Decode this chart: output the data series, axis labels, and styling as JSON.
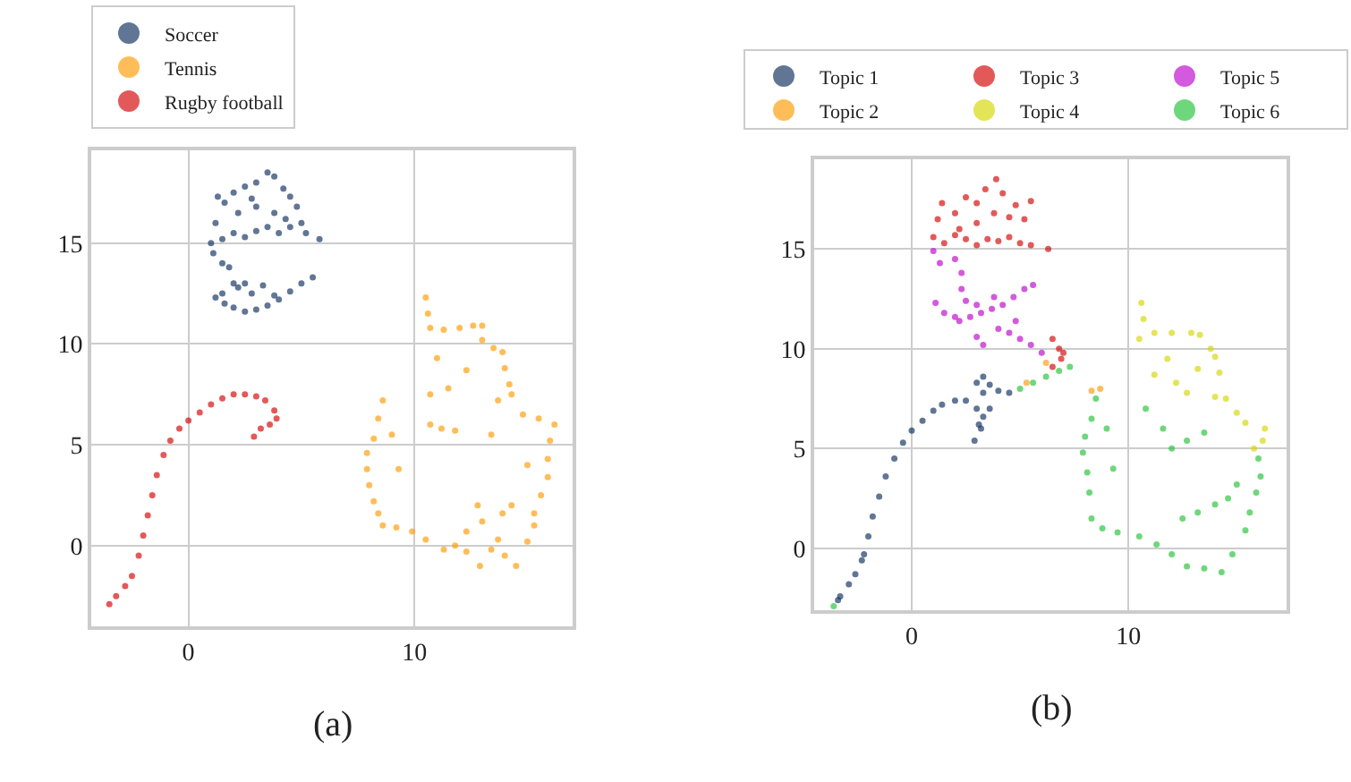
{
  "chart_data": [
    {
      "type": "scatter",
      "annotations": [
        "(a)"
      ],
      "xlim": [
        -4.3,
        17.0
      ],
      "ylim": [
        -4.0,
        19.6
      ],
      "xticks": [
        0,
        10
      ],
      "yticks": [
        0,
        5,
        10,
        15
      ],
      "grid": true,
      "legend": "top left",
      "marker": "circle",
      "series": [
        {
          "name": "Soccer",
          "color": "#0d2c5c",
          "x": [
            1.0,
            1.2,
            1.3,
            1.6,
            2.0,
            2.5,
            3.0,
            3.5,
            3.8,
            4.2,
            4.5,
            4.8,
            5.0,
            5.2,
            5.8,
            1.5,
            2.0,
            2.5,
            3.0,
            3.5,
            4.0,
            4.5,
            2.2,
            3.0,
            3.8,
            4.3,
            2.8,
            1.1,
            1.5,
            1.8,
            2.0,
            1.5,
            1.2,
            1.6,
            2.0,
            2.5,
            3.0,
            3.5,
            4.0,
            4.5,
            5.0,
            5.5,
            2.2,
            2.8,
            3.3,
            3.8,
            2.5
          ],
          "values": [
            15.0,
            16.0,
            17.3,
            17.0,
            17.5,
            17.8,
            18.0,
            18.5,
            18.3,
            17.7,
            17.3,
            16.8,
            16.0,
            15.5,
            15.2,
            15.2,
            15.5,
            15.3,
            15.6,
            15.8,
            15.5,
            15.8,
            16.5,
            16.8,
            16.5,
            16.2,
            17.2,
            14.5,
            14.0,
            13.8,
            13.0,
            12.5,
            12.3,
            12.0,
            11.8,
            11.6,
            11.7,
            11.9,
            12.2,
            12.6,
            13.0,
            13.3,
            12.8,
            12.5,
            12.9,
            12.4,
            13.0
          ]
        },
        {
          "name": "Tennis",
          "color": "#ff9a00",
          "x": [
            10.5,
            10.6,
            10.7,
            11.3,
            12.0,
            12.6,
            13.0,
            13.0,
            13.5,
            13.9,
            14.0,
            14.2,
            14.3,
            13.7,
            14.8,
            15.5,
            16.2,
            16.0,
            15.9,
            15.9,
            15.6,
            15.3,
            15.3,
            15.0,
            14.5,
            14.0,
            13.4,
            12.9,
            12.3,
            11.8,
            11.3,
            10.5,
            9.9,
            9.2,
            8.6,
            8.4,
            8.2,
            8.0,
            7.9,
            7.9,
            8.2,
            8.4,
            8.6,
            9.3,
            9.0,
            10.7,
            11.2,
            11.8,
            11.5,
            12.3,
            11.0,
            10.7,
            13.4,
            12.3,
            13.0,
            13.9,
            14.3,
            15.0,
            13.7,
            12.8
          ],
          "values": [
            12.3,
            11.5,
            10.8,
            10.7,
            10.8,
            10.9,
            10.9,
            10.2,
            9.8,
            9.6,
            8.8,
            8.0,
            7.5,
            7.2,
            6.5,
            6.3,
            6.0,
            5.2,
            4.3,
            3.4,
            2.5,
            1.6,
            1.0,
            0.2,
            -1.0,
            -0.5,
            -0.2,
            -1.0,
            -0.3,
            0.0,
            -0.2,
            0.3,
            0.7,
            0.9,
            1.0,
            1.6,
            2.2,
            3.0,
            3.8,
            4.6,
            5.3,
            6.3,
            7.2,
            3.8,
            5.5,
            6.0,
            5.8,
            5.7,
            7.8,
            8.7,
            9.3,
            7.5,
            5.5,
            0.7,
            1.2,
            1.6,
            2.0,
            4.0,
            0.3,
            2.0
          ]
        },
        {
          "name": "Rugby football",
          "color": "#d40000",
          "x": [
            -3.5,
            -3.2,
            -2.8,
            -2.5,
            -2.2,
            -2.0,
            -1.8,
            -1.6,
            -1.4,
            -1.1,
            -0.8,
            -0.4,
            0.0,
            0.5,
            1.0,
            1.5,
            2.0,
            2.5,
            3.0,
            3.4,
            3.8,
            3.9,
            3.6,
            3.2,
            2.9
          ],
          "values": [
            -2.9,
            -2.5,
            -2.0,
            -1.5,
            -0.5,
            0.5,
            1.5,
            2.5,
            3.5,
            4.5,
            5.2,
            5.8,
            6.2,
            6.6,
            7.0,
            7.3,
            7.5,
            7.5,
            7.4,
            7.2,
            6.7,
            6.3,
            6.0,
            5.8,
            5.4
          ]
        }
      ]
    },
    {
      "type": "scatter",
      "annotations": [
        "(b)"
      ],
      "xlim": [
        -4.5,
        17.3
      ],
      "ylim": [
        -3.1,
        19.5
      ],
      "xticks": [
        0,
        10
      ],
      "yticks": [
        0,
        5,
        10,
        15
      ],
      "grid": true,
      "legend": "top",
      "marker": "circle",
      "series": [
        {
          "name": "Topic 1",
          "color": "#0d2c5c",
          "x": [
            -3.4,
            -3.3,
            -2.9,
            -2.6,
            -2.3,
            -2.2,
            -2.0,
            -1.8,
            -1.5,
            -1.2,
            -0.8,
            -0.4,
            0.0,
            0.5,
            1.0,
            1.4,
            2.0,
            2.5,
            3.0,
            3.3,
            3.2,
            2.9,
            3.1,
            3.6,
            3.0,
            3.3,
            3.6,
            4.0,
            4.5,
            3.3
          ],
          "values": [
            -2.6,
            -2.4,
            -1.8,
            -1.3,
            -0.6,
            -0.3,
            0.6,
            1.6,
            2.6,
            3.6,
            4.5,
            5.3,
            5.9,
            6.4,
            6.9,
            7.2,
            7.4,
            7.4,
            7.0,
            6.6,
            6.0,
            5.4,
            6.2,
            7.0,
            8.3,
            8.6,
            8.2,
            7.9,
            7.8,
            7.8
          ]
        },
        {
          "name": "Topic 2",
          "color": "#ff9a00",
          "x": [
            8.7,
            8.3,
            5.3,
            6.2
          ],
          "values": [
            8.0,
            7.9,
            8.3,
            9.3
          ]
        },
        {
          "name": "Topic 3",
          "color": "#d40000",
          "x": [
            1.4,
            1.2,
            1.0,
            1.5,
            2.0,
            2.5,
            3.0,
            3.5,
            4.0,
            4.5,
            5.0,
            5.5,
            6.3,
            2.0,
            2.5,
            3.0,
            3.4,
            3.9,
            4.2,
            4.8,
            5.5,
            5.2,
            4.5,
            3.8,
            3.0,
            2.2,
            6.5,
            6.8,
            6.9,
            6.5,
            7.0
          ],
          "values": [
            17.3,
            16.5,
            15.6,
            15.3,
            15.7,
            15.5,
            15.2,
            15.5,
            15.4,
            15.6,
            15.3,
            15.2,
            15.0,
            16.8,
            17.6,
            17.3,
            18.0,
            18.5,
            17.8,
            17.2,
            17.4,
            16.5,
            16.6,
            16.8,
            16.3,
            16.0,
            10.5,
            10.0,
            9.5,
            9.1,
            9.8
          ]
        },
        {
          "name": "Topic 4",
          "color": "#d6d600",
          "x": [
            10.6,
            10.7,
            10.5,
            11.2,
            12.0,
            12.9,
            13.3,
            13.8,
            14.0,
            14.2,
            14.5,
            14.0,
            12.7,
            11.2,
            11.8,
            12.2,
            15.0,
            15.4,
            16.3,
            16.2,
            15.8,
            13.2
          ],
          "values": [
            12.3,
            11.5,
            10.5,
            10.8,
            10.8,
            10.8,
            10.7,
            10.0,
            9.6,
            8.8,
            7.5,
            7.6,
            7.8,
            8.7,
            9.5,
            8.3,
            6.8,
            6.3,
            6.0,
            5.4,
            5.0,
            9.0
          ]
        },
        {
          "name": "Topic 5",
          "color": "#bb00cc",
          "x": [
            1.0,
            1.3,
            2.0,
            2.3,
            2.3,
            1.1,
            1.5,
            2.0,
            2.2,
            2.7,
            3.2,
            3.7,
            4.2,
            4.7,
            5.2,
            5.6,
            2.5,
            3.0,
            3.8,
            3.3,
            3.0,
            4.0,
            4.5,
            5.0,
            5.5,
            6.0,
            4.8
          ],
          "values": [
            14.9,
            14.3,
            14.5,
            13.8,
            13.0,
            12.3,
            11.8,
            11.6,
            11.4,
            11.6,
            11.8,
            12.0,
            12.2,
            12.6,
            13.0,
            13.2,
            12.4,
            12.2,
            12.6,
            10.2,
            10.6,
            11.0,
            10.8,
            10.5,
            10.2,
            9.8,
            11.4
          ]
        },
        {
          "name": "Topic 6",
          "color": "#22c234",
          "x": [
            8.5,
            8.3,
            8.0,
            7.9,
            8.1,
            8.2,
            8.3,
            8.8,
            9.5,
            10.5,
            11.3,
            12.0,
            12.7,
            13.5,
            14.3,
            14.8,
            15.4,
            15.6,
            15.9,
            16.1,
            16.0,
            12.5,
            13.2,
            14.0,
            14.6,
            15.0,
            11.6,
            12.0,
            12.7,
            13.5,
            9.0,
            9.3,
            10.8,
            5.0,
            5.6,
            6.2,
            6.8,
            7.3,
            -3.6
          ],
          "values": [
            7.5,
            6.5,
            5.6,
            4.8,
            3.8,
            2.8,
            1.5,
            1.0,
            0.8,
            0.6,
            0.2,
            -0.3,
            -0.9,
            -1.0,
            -1.2,
            -0.3,
            0.9,
            1.8,
            2.8,
            3.6,
            4.5,
            1.5,
            1.8,
            2.2,
            2.5,
            3.2,
            6.0,
            5.0,
            5.4,
            5.8,
            6.0,
            4.0,
            7.0,
            8.0,
            8.3,
            8.6,
            8.9,
            9.1,
            -2.9
          ]
        }
      ]
    }
  ]
}
